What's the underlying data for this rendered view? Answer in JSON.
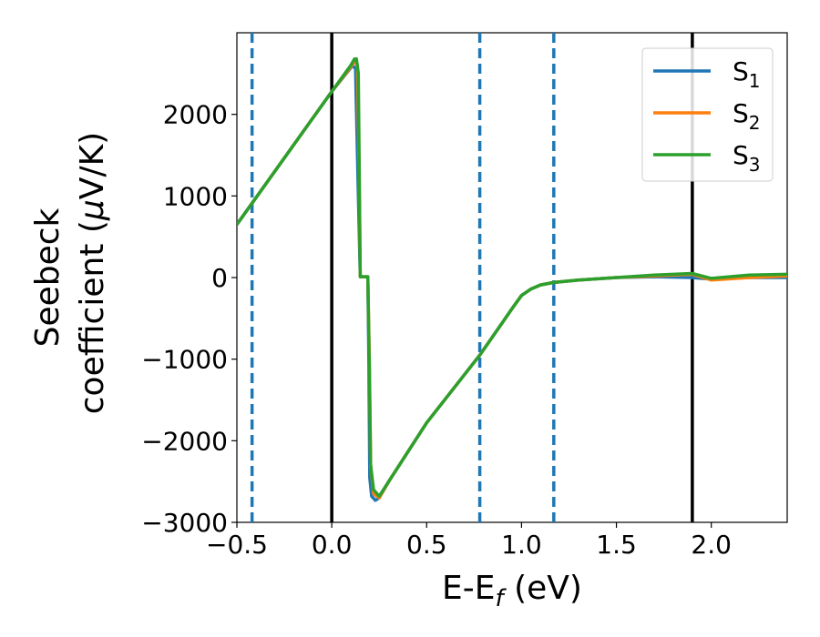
{
  "chart_data": {
    "type": "line",
    "xlabel_main": "E-E",
    "xlabel_sub": "f",
    "xlabel_tail": " (eV)",
    "ylabel_line1": "Seebeck",
    "ylabel_line2_pre": "coefficient  (",
    "ylabel_mu": "μ",
    "ylabel_line2_post": "V/K)",
    "xlim": [
      -0.5,
      2.4
    ],
    "ylim": [
      -3000,
      3000
    ],
    "xticks": [
      -0.5,
      0.0,
      0.5,
      1.0,
      1.5,
      2.0
    ],
    "xtick_labels": [
      "−0.5",
      "0.0",
      "0.5",
      "1.0",
      "1.5",
      "2.0"
    ],
    "yticks": [
      -3000,
      -2000,
      -1000,
      0,
      1000,
      2000
    ],
    "ytick_labels": [
      "−3000",
      "−2000",
      "−1000",
      "0",
      "1000",
      "2000"
    ],
    "grid": false,
    "legend_placement": "top-right",
    "vlines_solid": [
      0.0,
      1.9
    ],
    "vlines_dashed": [
      -0.42,
      0.78,
      1.17
    ],
    "vline_solid_color": "#000000",
    "vline_dashed_color": "#1f77b4",
    "series": [
      {
        "name": "S",
        "sub": "1",
        "color": "#1f77b4",
        "x": [
          -0.5,
          0.0,
          0.1,
          0.11,
          0.125,
          0.14,
          0.15,
          0.17,
          0.19,
          0.195,
          0.2,
          0.21,
          0.23,
          0.25,
          0.3,
          0.5,
          0.78,
          0.9,
          0.95,
          1.0,
          1.05,
          1.1,
          1.17,
          1.3,
          1.5,
          1.7,
          1.9,
          2.0,
          2.2,
          2.4
        ],
        "y": [
          650,
          2280,
          2570,
          2600,
          2560,
          1000,
          10,
          10,
          10,
          -1000,
          -2450,
          -2680,
          -2730,
          -2700,
          -2500,
          -1780,
          -950,
          -550,
          -380,
          -220,
          -140,
          -90,
          -60,
          -30,
          0,
          10,
          0,
          -20,
          0,
          0
        ]
      },
      {
        "name": "S",
        "sub": "2",
        "color": "#ff7f0e",
        "x": [
          -0.5,
          0.0,
          0.1,
          0.12,
          0.135,
          0.145,
          0.15,
          0.17,
          0.19,
          0.198,
          0.205,
          0.22,
          0.25,
          0.3,
          0.5,
          0.78,
          0.9,
          0.95,
          1.0,
          1.05,
          1.1,
          1.17,
          1.3,
          1.5,
          1.7,
          1.9,
          2.0,
          2.2,
          2.4
        ],
        "y": [
          650,
          2280,
          2580,
          2650,
          2600,
          1200,
          10,
          10,
          10,
          -1000,
          -2300,
          -2650,
          -2700,
          -2500,
          -1780,
          -950,
          -550,
          -380,
          -220,
          -140,
          -90,
          -60,
          -30,
          0,
          20,
          40,
          -30,
          0,
          20
        ]
      },
      {
        "name": "S",
        "sub": "3",
        "color": "#2ca02c",
        "x": [
          -0.5,
          0.0,
          0.1,
          0.12,
          0.13,
          0.14,
          0.15,
          0.17,
          0.19,
          0.198,
          0.205,
          0.22,
          0.25,
          0.3,
          0.5,
          0.78,
          0.9,
          0.95,
          1.0,
          1.05,
          1.1,
          1.17,
          1.3,
          1.5,
          1.7,
          1.9,
          2.0,
          2.2,
          2.4
        ],
        "y": [
          650,
          2280,
          2600,
          2680,
          2680,
          2500,
          10,
          10,
          10,
          -1100,
          -2300,
          -2600,
          -2680,
          -2500,
          -1780,
          -950,
          -550,
          -380,
          -220,
          -140,
          -90,
          -60,
          -30,
          0,
          30,
          50,
          -10,
          30,
          40
        ]
      }
    ]
  }
}
